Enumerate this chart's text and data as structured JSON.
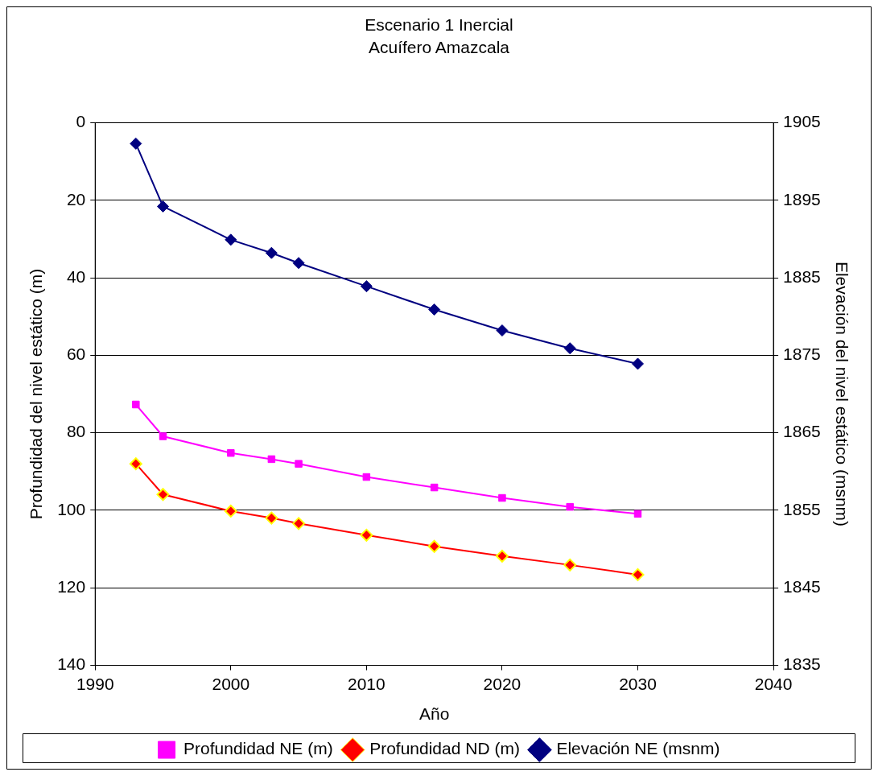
{
  "chart_data": {
    "type": "line",
    "title": "Escenario 1 Inercial",
    "subtitle": "Acuífero Amazcala",
    "xlabel": "Año",
    "ylabel": "Profundidad del nivel estático (m)",
    "y2label": "Elevación del nivel estático (msnm)",
    "x": [
      1993,
      1995,
      2000,
      2003,
      2005,
      2010,
      2015,
      2020,
      2025,
      2030
    ],
    "series": [
      {
        "name": "Profundidad NE (m)",
        "color": "#ff00ff",
        "marker": "square",
        "values": [
          72.7,
          80.9,
          85.2,
          86.8,
          88,
          91.4,
          94.1,
          96.8,
          99.1,
          100.9
        ]
      },
      {
        "name": "Profundidad ND (m)",
        "color": "#ff0000",
        "marker": "diamond",
        "values": [
          88,
          95.9,
          100.2,
          102,
          103.4,
          106.4,
          109.3,
          111.8,
          114.1,
          116.6
        ]
      },
      {
        "name": "Elevación NE (msnm)",
        "color": "#000080",
        "marker": "diamond",
        "axis": "y2",
        "values": [
          1902.3,
          1894.2,
          1889.9,
          1888.2,
          1886.9,
          1883.9,
          1880.9,
          1878.2,
          1875.9,
          1873.9
        ]
      }
    ],
    "xlim": [
      1990,
      2040
    ],
    "xticks": [
      1990,
      2000,
      2010,
      2020,
      2030,
      2040
    ],
    "ylim": [
      140,
      0
    ],
    "yticks": [
      0,
      20,
      40,
      60,
      80,
      100,
      120,
      140
    ],
    "y2lim": [
      1835,
      1905
    ],
    "y2ticks": [
      1835,
      1845,
      1855,
      1865,
      1875,
      1885,
      1895,
      1905
    ],
    "grid": "y",
    "legend": "bottom",
    "line_style": "solid"
  }
}
